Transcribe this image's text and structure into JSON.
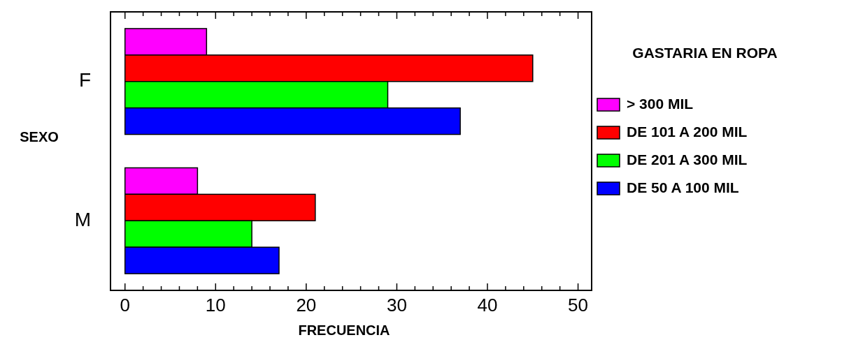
{
  "chart_data": {
    "type": "bar",
    "orientation": "horizontal",
    "categories": [
      "F",
      "M"
    ],
    "xlabel": "FRECUENCIA",
    "ylabel": "SEXO",
    "legend_title": "GASTARIA EN ROPA",
    "legend": "right",
    "series": [
      {
        "name": "> 300 MIL",
        "color": "#ff00ff",
        "values": [
          9,
          8
        ]
      },
      {
        "name": "DE 101 A 200 MIL",
        "color": "#ff0000",
        "values": [
          45,
          21
        ]
      },
      {
        "name": "DE 201 A 300 MIL",
        "color": "#00ff00",
        "values": [
          29,
          14
        ]
      },
      {
        "name": "DE 50 A 100 MIL",
        "color": "#0000ff",
        "values": [
          37,
          17
        ]
      }
    ],
    "xlim": [
      -1.6,
      51.5
    ],
    "xticks": [
      0,
      {
        "value": 2,
        "label": null
      },
      {
        "value": 4,
        "label": null
      },
      {
        "value": 6,
        "label": null
      },
      {
        "value": 8,
        "label": null
      },
      10,
      {
        "value": 12,
        "label": null
      },
      {
        "value": 14,
        "label": null
      },
      {
        "value": 16,
        "label": null
      },
      {
        "value": 18,
        "label": null
      },
      20,
      {
        "value": 22,
        "label": null
      },
      {
        "value": 24,
        "label": null
      },
      {
        "value": 26,
        "label": null
      },
      {
        "value": 28,
        "label": null
      },
      30,
      {
        "value": 32,
        "label": null
      },
      {
        "value": 34,
        "label": null
      },
      {
        "value": 36,
        "label": null
      },
      {
        "value": 38,
        "label": null
      },
      40,
      {
        "value": 42,
        "label": null
      },
      {
        "value": 44,
        "label": null
      },
      {
        "value": 46,
        "label": null
      },
      {
        "value": 48,
        "label": null
      },
      50
    ]
  }
}
